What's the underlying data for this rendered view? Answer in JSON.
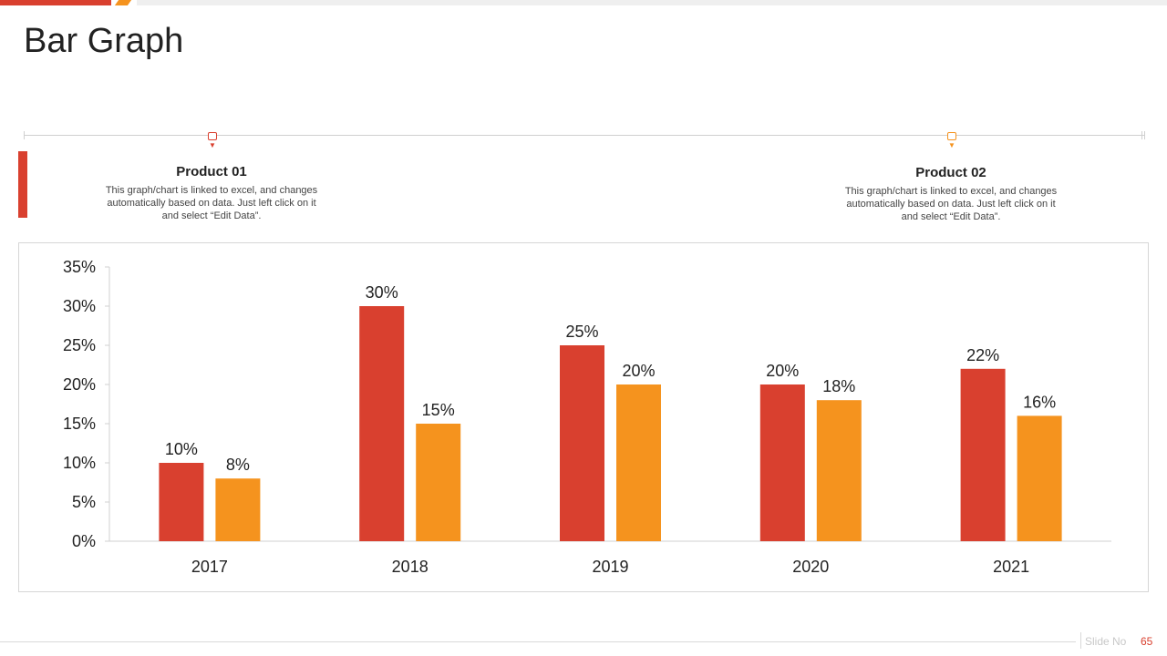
{
  "slide": {
    "title": "Bar Graph",
    "slide_no_label": "Slide No",
    "slide_no": "65"
  },
  "products": [
    {
      "title": "Product 01",
      "line1": "This graph/chart is linked to excel, and changes",
      "line2": "automatically based on data. Just left click on it",
      "line3": "and select “Edit Data”."
    },
    {
      "title": "Product 02",
      "line1": "This graph/chart is linked to excel, and changes",
      "line2": "automatically based on data. Just left click on it",
      "line3": "and select “Edit Data”."
    }
  ],
  "colors": {
    "product01": "#d9402f",
    "product02": "#f5931e",
    "axis": "#d0d0d0"
  },
  "chart_data": {
    "type": "bar",
    "categories": [
      "2017",
      "2018",
      "2019",
      "2020",
      "2021"
    ],
    "series": [
      {
        "values": [
          10,
          30,
          25,
          20,
          22
        ],
        "color": "#d9402f"
      },
      {
        "values": [
          8,
          15,
          20,
          18,
          16
        ],
        "color": "#f5931e"
      }
    ],
    "ylim": [
      0,
      35
    ],
    "yticks": [
      0,
      5,
      10,
      15,
      20,
      25,
      30,
      35
    ],
    "ytick_labels": [
      "0%",
      "5%",
      "10%",
      "15%",
      "20%",
      "25%",
      "30%",
      "35%"
    ],
    "data_labels": [
      [
        "10%",
        "30%",
        "25%",
        "20%",
        "22%"
      ],
      [
        "8%",
        "15%",
        "20%",
        "18%",
        "16%"
      ]
    ],
    "legend": "none",
    "grid": false
  }
}
